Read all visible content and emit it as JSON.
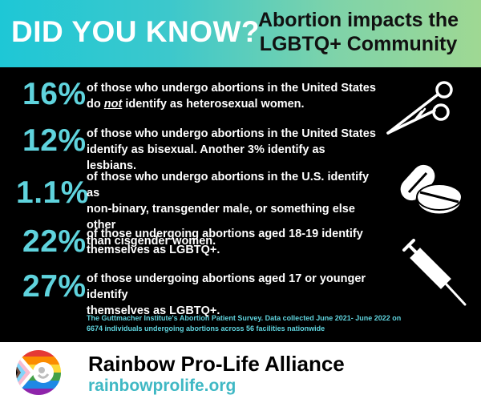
{
  "header": {
    "headline": "DID YOU KNOW?",
    "subtitle_line1": "Abortion impacts the",
    "subtitle_line2": "LGBTQ+ Community"
  },
  "stats": [
    {
      "percent": "16%",
      "line1": "of those who undergo abortions in the United States",
      "line2_before": "do ",
      "line2_emph": "not",
      "line2_after": " identify as heterosexual women."
    },
    {
      "percent": "12%",
      "line1": "of those who undergo abortions in the United States",
      "line2": "identify as bisexual. Another 3% identify as lesbians."
    },
    {
      "percent": "1.1%",
      "line1": "of those who undergo abortions in the U.S. identify as",
      "line2": "non-binary, transgender male, or something else other",
      "line3": "than cisgender women."
    },
    {
      "percent": "22%",
      "line1": "of those undergoing abortions aged 18-19 identify",
      "line2": "themselves as LGBTQ+."
    },
    {
      "percent": "27%",
      "line1": "of those undergoing abortions aged 17 or younger identify",
      "line2": "themselves as LGBTQ+."
    }
  ],
  "source": {
    "line1": "The Guttmacher Institute's Abortion Patient Survey. Data collected June 2021- June 2022 on",
    "line2": "6674 individuals undergoing abortions across 56 facilities nationwide"
  },
  "icons": [
    "forceps-icon",
    "pills-icon",
    "syringe-icon"
  ],
  "footer": {
    "org_name": "Rainbow Pro-Life Alliance",
    "url": "rainbowprolife.org"
  },
  "colors": {
    "accent": "#5fd3dd",
    "url": "#3fb8c4",
    "gradient_start": "#1ec7d6",
    "gradient_end": "#9fd893"
  }
}
